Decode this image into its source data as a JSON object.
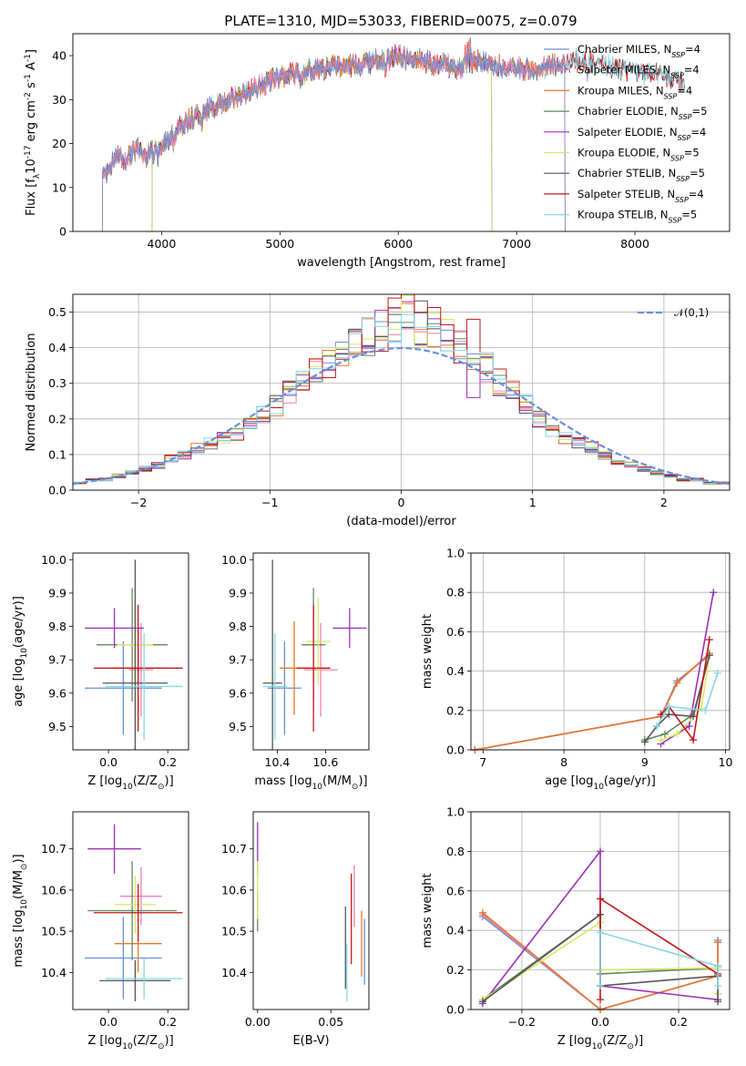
{
  "figure": {
    "title": "PLATE=1310, MJD=53033, FIBERID=0075, z=0.079"
  },
  "models": [
    {
      "name": "Chabrier MILES, N$_{SSP}$=4",
      "label": "Chabrier MILES, N",
      "sub": "SSP",
      "tail": "=4",
      "color": "#6a8fd9"
    },
    {
      "name": "Salpeter MILES, N$_{SSP}$=4",
      "label": "Salpeter MILES, N",
      "sub": "SSP",
      "tail": "=4",
      "color": "#f07fb0"
    },
    {
      "name": "Kroupa MILES, N$_{SSP}$=4",
      "label": "Kroupa MILES, N",
      "sub": "SSP",
      "tail": "=4",
      "color": "#e8772b"
    },
    {
      "name": "Chabrier ELODIE, N$_{SSP}$=5",
      "label": "Chabrier ELODIE, N",
      "sub": "SSP",
      "tail": "=5",
      "color": "#5f8a5a"
    },
    {
      "name": "Salpeter ELODIE, N$_{SSP}$=4",
      "label": "Salpeter ELODIE, N",
      "sub": "SSP",
      "tail": "=4",
      "color": "#9b30b8"
    },
    {
      "name": "Kroupa ELODIE, N$_{SSP}$=5",
      "label": "Kroupa ELODIE, N",
      "sub": "SSP",
      "tail": "=5",
      "color": "#d7e866"
    },
    {
      "name": "Chabrier STELIB, N$_{SSP}$=5",
      "label": "Chabrier STELIB, N",
      "sub": "SSP",
      "tail": "=5",
      "color": "#555555"
    },
    {
      "name": "Salpeter STELIB, N$_{SSP}$=4",
      "label": "Salpeter STELIB, N",
      "sub": "SSP",
      "tail": "=4",
      "color": "#c01818"
    },
    {
      "name": "Kroupa STELIB, N$_{SSP}$=5",
      "label": "Kroupa STELIB, N",
      "sub": "SSP",
      "tail": "=5",
      "color": "#86d8e8"
    }
  ],
  "chart_data": [
    {
      "id": "spectrum",
      "type": "line",
      "title": "PLATE=1310, MJD=53033, FIBERID=0075, z=0.079",
      "xlabel": "wavelength [Angstrom, rest frame]",
      "ylabel": "Flux [f$_\\lambda$10$^{-17}$ erg cm$^{-2}$ s$^{-1}$ A$^{-1}$]",
      "xlim": [
        3250,
        8800
      ],
      "ylim": [
        0,
        45
      ],
      "xticks": [
        4000,
        5000,
        6000,
        7000,
        8000
      ],
      "yticks": [
        0,
        10,
        20,
        30,
        40
      ],
      "grid": false,
      "legend": "top-right",
      "continuum": {
        "x": [
          3500,
          3550,
          3600,
          3650,
          3700,
          3750,
          3800,
          3850,
          3900,
          3950,
          4000,
          4050,
          4100,
          4150,
          4200,
          4300,
          4400,
          4500,
          4600,
          4700,
          4800,
          4900,
          5000,
          5100,
          5200,
          5300,
          5400,
          5500,
          5600,
          5700,
          5800,
          5900,
          6000,
          6100,
          6200,
          6300,
          6400,
          6500,
          6600,
          6700,
          6800,
          6900,
          7000,
          7100,
          7200,
          7300,
          7400,
          7500,
          7700,
          7900,
          8100,
          8300,
          8400
        ],
        "y": [
          13,
          14,
          16,
          17,
          16,
          18,
          19,
          17,
          18,
          20,
          19,
          21,
          22,
          24,
          25,
          26,
          28,
          29,
          30,
          31,
          33,
          34,
          35,
          36,
          36,
          37,
          37,
          38,
          38,
          38,
          39,
          39,
          40,
          39,
          39,
          38,
          38,
          37,
          38,
          39,
          38,
          37,
          37,
          37,
          37,
          38,
          38,
          39,
          38,
          37,
          36,
          35,
          34
        ]
      },
      "drops": {
        "Chabrier MILES, N$_{SSP}$=4": [
          [
            3500,
            0
          ],
          [
            7410,
            0
          ]
        ],
        "Salpeter MILES, N$_{SSP}$=4": [
          [
            3500,
            0
          ],
          [
            7410,
            0
          ]
        ],
        "Kroupa MILES, N$_{SSP}$=4": [
          [
            3500,
            0
          ],
          [
            7410,
            0
          ]
        ],
        "Kroupa ELODIE, N$_{SSP}$=5": [
          [
            3920,
            0
          ],
          [
            6790,
            0
          ]
        ],
        "Salpeter ELODIE, N$_{SSP}$=4": [
          [
            3920,
            0
          ],
          [
            6790,
            0
          ]
        ],
        "Chabrier ELODIE, N$_{SSP}$=5": [
          [
            3920,
            0
          ],
          [
            6790,
            0
          ]
        ]
      }
    },
    {
      "id": "residual-histogram",
      "type": "line",
      "xlabel": "(data-model)/error",
      "ylabel": "Normed distribution",
      "xlim": [
        -2.5,
        2.5
      ],
      "ylim": [
        0,
        0.55
      ],
      "xticks": [
        -2,
        -1,
        0,
        1,
        2
      ],
      "yticks": [
        0.0,
        0.1,
        0.2,
        0.3,
        0.4,
        0.5
      ],
      "grid": true,
      "legend": "top-right",
      "reference": {
        "label": "$\\mathcal{N}(0,1)$",
        "color": "#6a8fd9"
      },
      "bin_width": 0.1,
      "bin_start": -2.5,
      "base_density": [
        0.02,
        0.03,
        0.03,
        0.04,
        0.05,
        0.06,
        0.07,
        0.09,
        0.1,
        0.12,
        0.13,
        0.15,
        0.16,
        0.19,
        0.21,
        0.24,
        0.27,
        0.3,
        0.33,
        0.35,
        0.37,
        0.4,
        0.43,
        0.45,
        0.48,
        0.49,
        0.47,
        0.45,
        0.43,
        0.41,
        0.37,
        0.34,
        0.3,
        0.27,
        0.24,
        0.2,
        0.17,
        0.15,
        0.13,
        0.12,
        0.1,
        0.08,
        0.07,
        0.06,
        0.05,
        0.04,
        0.03,
        0.03,
        0.02,
        0.02
      ]
    },
    {
      "id": "age-vs-Z",
      "type": "scatter",
      "xlabel": "Z [log$_{10}$($Z/Z_\\odot$)]",
      "ylabel": "age  [log$_{10}$($age/yr$)]",
      "xlim": [
        -0.12,
        0.27
      ],
      "ylim": [
        9.43,
        10.02
      ],
      "xticks": [
        0.0,
        0.2
      ],
      "yticks": [
        9.5,
        9.6,
        9.7,
        9.8,
        9.9,
        10.0
      ],
      "points": [
        {
          "model": 0,
          "x": 0.05,
          "xerr": 0.13,
          "y": 9.615,
          "yerr": 0.14
        },
        {
          "model": 1,
          "x": 0.11,
          "xerr": 0.04,
          "y": 9.67,
          "yerr": 0.14
        },
        {
          "model": 2,
          "x": 0.1,
          "xerr": 0.09,
          "y": 9.675,
          "yerr": 0.14
        },
        {
          "model": 3,
          "x": 0.08,
          "xerr": 0.12,
          "y": 9.745,
          "yerr": 0.17
        },
        {
          "model": 4,
          "x": 0.02,
          "xerr": 0.1,
          "y": 9.795,
          "yerr": 0.06
        },
        {
          "model": 5,
          "x": 0.09,
          "xerr": 0.06,
          "y": 9.745,
          "yerr": 0.13
        },
        {
          "model": 6,
          "x": 0.09,
          "xerr": 0.11,
          "y": 9.63,
          "yerr": 0.37
        },
        {
          "model": 7,
          "x": 0.1,
          "xerr": 0.15,
          "y": 9.675,
          "yerr": 0.19
        },
        {
          "model": 8,
          "x": 0.12,
          "xerr": 0.13,
          "y": 9.62,
          "yerr": 0.16
        }
      ]
    },
    {
      "id": "age-vs-mass",
      "type": "scatter",
      "xlabel": "mass [log$_{10}$($M/M_\\odot$)]",
      "ylabel": "",
      "xlim": [
        10.3,
        10.78
      ],
      "ylim": [
        9.43,
        10.02
      ],
      "xticks": [
        10.4,
        10.6
      ],
      "yticks": [
        9.5,
        9.6,
        9.7,
        9.8,
        9.9,
        10.0
      ],
      "points": [
        {
          "model": 0,
          "x": 10.43,
          "xerr": 0.07,
          "y": 9.615,
          "yerr": 0.14
        },
        {
          "model": 1,
          "x": 10.58,
          "xerr": 0.07,
          "y": 9.67,
          "yerr": 0.14
        },
        {
          "model": 2,
          "x": 10.47,
          "xerr": 0.06,
          "y": 9.675,
          "yerr": 0.14
        },
        {
          "model": 3,
          "x": 10.55,
          "xerr": 0.05,
          "y": 9.745,
          "yerr": 0.17
        },
        {
          "model": 4,
          "x": 10.7,
          "xerr": 0.07,
          "y": 9.795,
          "yerr": 0.06
        },
        {
          "model": 5,
          "x": 10.57,
          "xerr": 0.05,
          "y": 9.755,
          "yerr": 0.13
        },
        {
          "model": 6,
          "x": 10.38,
          "xerr": 0.04,
          "y": 9.63,
          "yerr": 0.37
        },
        {
          "model": 7,
          "x": 10.55,
          "xerr": 0.07,
          "y": 9.675,
          "yerr": 0.19
        },
        {
          "model": 8,
          "x": 10.39,
          "xerr": 0.05,
          "y": 9.62,
          "yerr": 0.16
        }
      ]
    },
    {
      "id": "massweight-vs-age",
      "type": "line",
      "xlabel": "age  [log$_{10}$($age/yr$)]",
      "ylabel": "mass weight",
      "xlim": [
        6.85,
        10.05
      ],
      "ylim": [
        0,
        1.0
      ],
      "xticks": [
        7,
        8,
        9,
        10
      ],
      "yticks": [
        0.0,
        0.2,
        0.4,
        0.6,
        0.8,
        1.0
      ],
      "grid": true,
      "series": [
        {
          "model": 0,
          "x": [
            6.9,
            9.2,
            9.4,
            9.8
          ],
          "y": [
            0.0,
            0.17,
            0.35,
            0.48
          ]
        },
        {
          "model": 1,
          "x": [
            6.9,
            9.2,
            9.4,
            9.8
          ],
          "y": [
            0.0,
            0.17,
            0.34,
            0.49
          ]
        },
        {
          "model": 2,
          "x": [
            6.9,
            9.2,
            9.4,
            9.8
          ],
          "y": [
            0.0,
            0.17,
            0.34,
            0.49
          ]
        },
        {
          "model": 3,
          "x": [
            9.0,
            9.25,
            9.6,
            9.8
          ],
          "y": [
            0.05,
            0.08,
            0.18,
            0.48
          ]
        },
        {
          "model": 4,
          "x": [
            9.2,
            9.55,
            9.85
          ],
          "y": [
            0.03,
            0.12,
            0.8
          ]
        },
        {
          "model": 5,
          "x": [
            9.2,
            9.4,
            9.7,
            9.8
          ],
          "y": [
            0.05,
            0.08,
            0.21,
            0.48
          ]
        },
        {
          "model": 6,
          "x": [
            9.0,
            9.15,
            9.3,
            9.6,
            9.8
          ],
          "y": [
            0.04,
            0.12,
            0.18,
            0.17,
            0.48
          ]
        },
        {
          "model": 7,
          "x": [
            9.2,
            9.3,
            9.6,
            9.8
          ],
          "y": [
            0.18,
            0.22,
            0.05,
            0.56
          ]
        },
        {
          "model": 8,
          "x": [
            9.15,
            9.3,
            9.75,
            9.9
          ],
          "y": [
            0.12,
            0.22,
            0.2,
            0.39
          ]
        }
      ]
    },
    {
      "id": "mass-vs-Z",
      "type": "scatter",
      "xlabel": "Z [log$_{10}$($Z/Z_\\odot$)]",
      "ylabel": "mass [log$_{10}$($M/M_\\odot$)]",
      "xlim": [
        -0.12,
        0.27
      ],
      "ylim": [
        10.31,
        10.79
      ],
      "xticks": [
        0.0,
        0.2
      ],
      "yticks": [
        10.4,
        10.5,
        10.6,
        10.7
      ],
      "points": [
        {
          "model": 0,
          "x": 0.05,
          "xerr": 0.13,
          "y": 10.435,
          "yerr": 0.1
        },
        {
          "model": 1,
          "x": 0.11,
          "xerr": 0.07,
          "y": 10.585,
          "yerr": 0.07
        },
        {
          "model": 2,
          "x": 0.1,
          "xerr": 0.08,
          "y": 10.47,
          "yerr": 0.07
        },
        {
          "model": 3,
          "x": 0.08,
          "xerr": 0.15,
          "y": 10.55,
          "yerr": 0.12
        },
        {
          "model": 4,
          "x": 0.02,
          "xerr": 0.09,
          "y": 10.7,
          "yerr": 0.06
        },
        {
          "model": 5,
          "x": 0.09,
          "xerr": 0.07,
          "y": 10.565,
          "yerr": 0.07
        },
        {
          "model": 6,
          "x": 0.09,
          "xerr": 0.12,
          "y": 10.38,
          "yerr": 0.05
        },
        {
          "model": 7,
          "x": 0.1,
          "xerr": 0.15,
          "y": 10.545,
          "yerr": 0.07
        },
        {
          "model": 8,
          "x": 0.12,
          "xerr": 0.13,
          "y": 10.385,
          "yerr": 0.05
        }
      ]
    },
    {
      "id": "mass-vs-EBV",
      "type": "scatter",
      "xlabel": "E(B-V)",
      "ylabel": "",
      "xlim": [
        -0.003,
        0.076
      ],
      "ylim": [
        10.31,
        10.79
      ],
      "xticks": [
        0.0,
        0.05
      ],
      "yticks": [
        10.4,
        10.5,
        10.6,
        10.7
      ],
      "points": [
        {
          "model": 0,
          "x": 0.073,
          "y": 10.45,
          "yerr": 0.08
        },
        {
          "model": 1,
          "x": 0.066,
          "y": 10.585,
          "yerr": 0.075
        },
        {
          "model": 2,
          "x": 0.071,
          "y": 10.47,
          "yerr": 0.08
        },
        {
          "model": 3,
          "x": 0.0,
          "y": 10.55,
          "yerr": 0.05
        },
        {
          "model": 4,
          "x": 0.0,
          "y": 10.7,
          "yerr": 0.065
        },
        {
          "model": 5,
          "x": 0.0,
          "y": 10.6,
          "yerr": 0.07
        },
        {
          "model": 6,
          "x": 0.06,
          "y": 10.46,
          "yerr": 0.1
        },
        {
          "model": 7,
          "x": 0.064,
          "y": 10.53,
          "yerr": 0.11
        },
        {
          "model": 8,
          "x": 0.061,
          "y": 10.4,
          "yerr": 0.07
        }
      ]
    },
    {
      "id": "massweight-vs-Z",
      "type": "line",
      "xlabel": "Z [log$_{10}$($Z/Z_\\odot$)]",
      "ylabel": "mass weight",
      "xlim": [
        -0.33,
        0.33
      ],
      "ylim": [
        0,
        1.0
      ],
      "xticks": [
        -0.2,
        0.0,
        0.2
      ],
      "yticks": [
        0.0,
        0.2,
        0.4,
        0.6,
        0.8,
        1.0
      ],
      "grid": true,
      "series": [
        {
          "model": 0,
          "x": [
            -0.3,
            0.0,
            0.3,
            0.3
          ],
          "y": [
            0.47,
            0.0,
            0.17,
            0.35
          ]
        },
        {
          "model": 1,
          "x": [
            -0.3,
            0.0,
            0.3,
            0.3
          ],
          "y": [
            0.48,
            0.0,
            0.17,
            0.34
          ]
        },
        {
          "model": 2,
          "x": [
            -0.3,
            0.0,
            0.3,
            0.3
          ],
          "y": [
            0.49,
            0.0,
            0.17,
            0.34
          ]
        },
        {
          "model": 3,
          "x": [
            -0.3,
            0.0,
            0.0,
            0.3,
            0.3
          ],
          "y": [
            0.05,
            0.48,
            0.18,
            0.21,
            0.08
          ]
        },
        {
          "model": 4,
          "x": [
            -0.3,
            0.0,
            0.0,
            0.3
          ],
          "y": [
            0.03,
            0.8,
            0.12,
            0.05
          ]
        },
        {
          "model": 5,
          "x": [
            -0.3,
            0.0,
            0.0,
            0.3,
            0.3
          ],
          "y": [
            0.05,
            0.44,
            0.2,
            0.21,
            0.08
          ]
        },
        {
          "model": 6,
          "x": [
            -0.3,
            0.0,
            0.0,
            0.3,
            0.3
          ],
          "y": [
            0.04,
            0.48,
            0.12,
            0.17,
            0.04
          ]
        },
        {
          "model": 7,
          "x": [
            0.0,
            0.0,
            0.3,
            0.3
          ],
          "y": [
            0.05,
            0.56,
            0.18,
            0.22
          ]
        },
        {
          "model": 8,
          "x": [
            0.0,
            0.0,
            0.3,
            0.3
          ],
          "y": [
            0.12,
            0.39,
            0.22,
            0.12
          ]
        }
      ]
    }
  ]
}
